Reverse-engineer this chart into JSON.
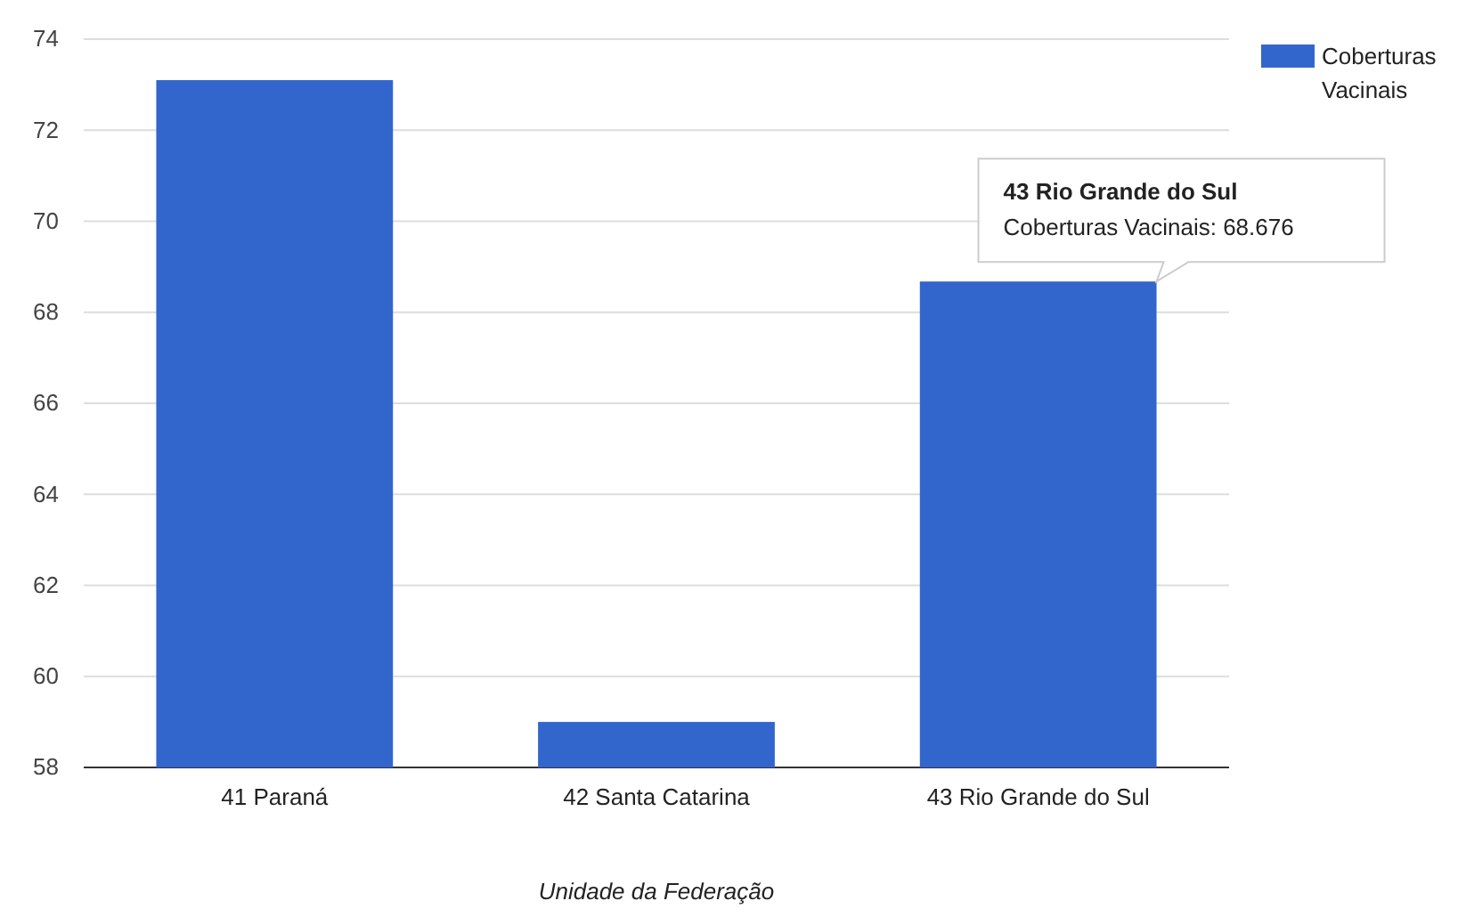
{
  "chart_data": {
    "type": "bar",
    "xlabel": "Unidade da Federação",
    "categories": [
      "41 Paraná",
      "42 Santa Catarina",
      "43 Rio Grande do Sul"
    ],
    "series": [
      {
        "name": "Coberturas Vacinais",
        "color": "#3366cc",
        "values": [
          73.1,
          59.0,
          68.676
        ]
      }
    ],
    "ylim": [
      58,
      74
    ],
    "yticks": [
      58,
      60,
      62,
      64,
      66,
      68,
      70,
      72,
      74
    ],
    "grid": "y",
    "legend": "top right",
    "annotations": [
      {
        "text": "43 Rio Grande do Sul\nCoberturas Vacinais: 68.676",
        "x": "43 Rio Grande do Sul",
        "y": 68.676
      }
    ]
  }
}
